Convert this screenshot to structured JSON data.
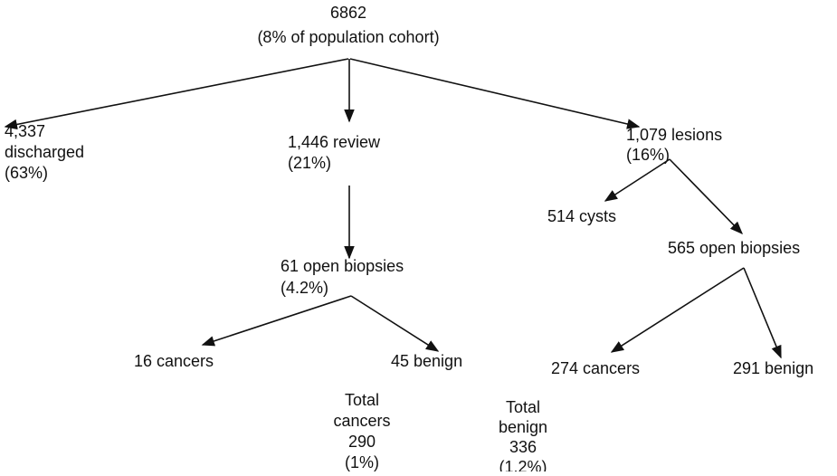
{
  "nodes": [
    {
      "lines": [
        "6862",
        "(8% of population cohort)"
      ]
    },
    {
      "lines": [
        "4,337",
        "discharged",
        "(63%)"
      ]
    },
    {
      "lines": [
        "1,446 review",
        "(21%)"
      ]
    },
    {
      "lines": [
        "1,079 lesions",
        "(16%)"
      ]
    },
    {
      "lines": [
        "61 open biopsies",
        "(4.2%)"
      ]
    },
    {
      "lines": [
        "514 cysts"
      ]
    },
    {
      "lines": [
        "565 open biopsies"
      ]
    },
    {
      "lines": [
        "16 cancers"
      ]
    },
    {
      "lines": [
        "45 benign"
      ]
    },
    {
      "lines": [
        "274 cancers"
      ]
    },
    {
      "lines": [
        "291 benign"
      ]
    },
    {
      "lines": [
        "Total",
        "cancers",
        "290",
        "(1%)"
      ]
    },
    {
      "lines": [
        "Total",
        "benign",
        "336",
        "(1.2%)"
      ]
    }
  ]
}
